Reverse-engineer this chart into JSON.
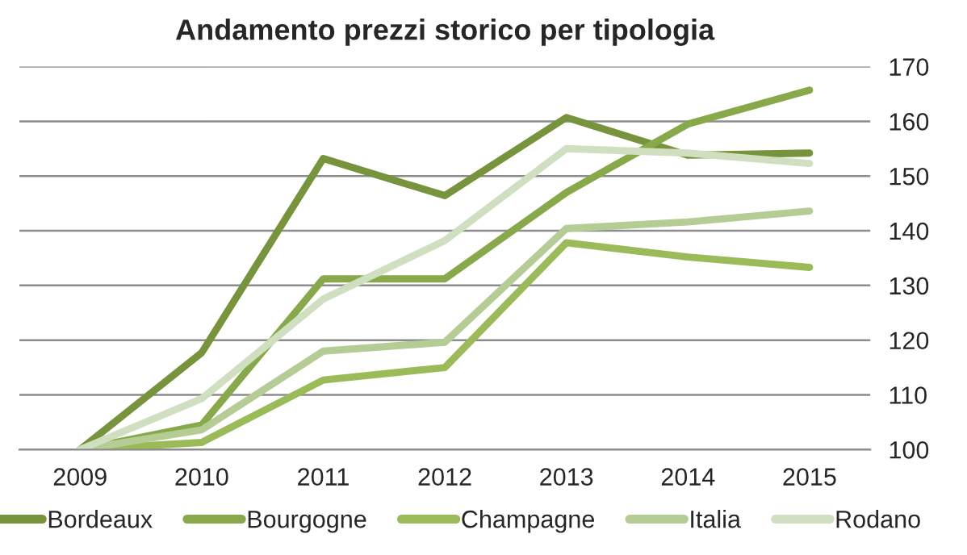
{
  "chart_data": {
    "type": "line",
    "title": "Andamento prezzi storico per tipologia",
    "categories": [
      "2009",
      "2010",
      "2011",
      "2012",
      "2013",
      "2014",
      "2015"
    ],
    "series": [
      {
        "name": "Bordeaux",
        "color": "#77933c",
        "values": [
          100,
          117.7,
          153.2,
          146.4,
          160.7,
          153.8,
          154.2
        ]
      },
      {
        "name": "Bourgogne",
        "color": "#88a94a",
        "values": [
          100,
          104.5,
          131.2,
          131.2,
          147,
          159.5,
          165.7
        ]
      },
      {
        "name": "Champagne",
        "color": "#9bbb59",
        "values": [
          100,
          101.3,
          112.7,
          115,
          137.8,
          135.2,
          133.3
        ]
      },
      {
        "name": "Italia",
        "color": "#b5cc95",
        "values": [
          100,
          103.6,
          118,
          119.6,
          140.4,
          141.6,
          143.6
        ]
      },
      {
        "name": "Rodano",
        "color": "#d0dfc0",
        "values": [
          100,
          109.3,
          127.5,
          138.2,
          155,
          154.2,
          152.3
        ]
      }
    ],
    "ylim": [
      100,
      170
    ],
    "yticks": [
      100,
      110,
      120,
      130,
      140,
      150,
      160,
      170
    ],
    "grid": "y",
    "legend": "bottom",
    "marker": "none",
    "line_style": "solid"
  }
}
